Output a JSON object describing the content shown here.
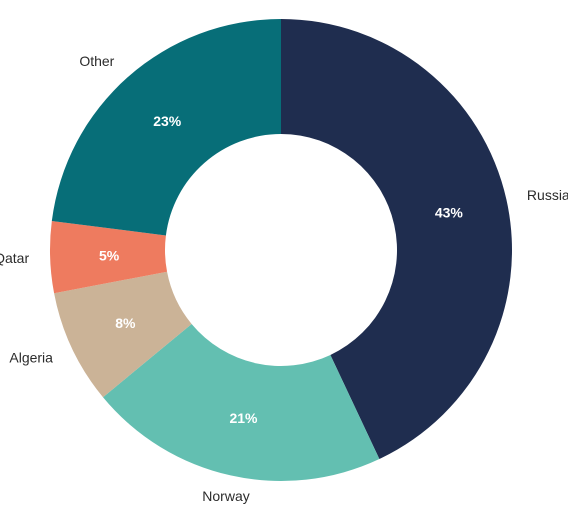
{
  "chart_data": {
    "type": "pie",
    "title": "",
    "categories": [
      "Russia",
      "Norway",
      "Algeria",
      "Qatar",
      "Other"
    ],
    "values": [
      43,
      21,
      8,
      5,
      23
    ],
    "data_labels": [
      "43%",
      "21%",
      "8%",
      "5%",
      "23%"
    ],
    "colors": [
      "#1f2d4f",
      "#63bfb1",
      "#cbb397",
      "#ee7b5f",
      "#076e78"
    ],
    "donut": true,
    "start_angle": "top",
    "direction": "clockwise",
    "legend": "none"
  }
}
